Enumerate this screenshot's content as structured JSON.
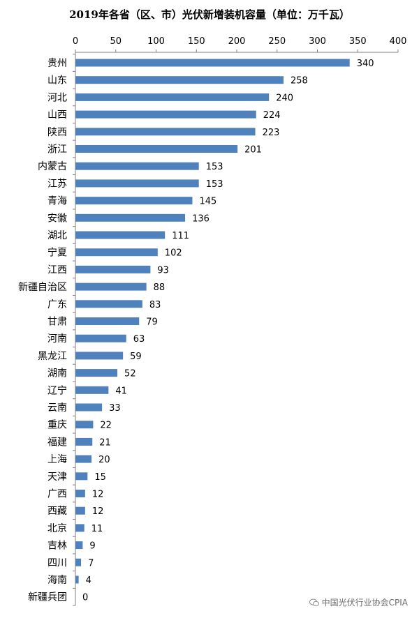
{
  "chart_data": {
    "type": "bar",
    "orientation": "horizontal",
    "title": "2019年各省（区、市）光伏新增装机容量（单位：万千瓦）",
    "categories": [
      "贵州",
      "山东",
      "河北",
      "山西",
      "陕西",
      "浙江",
      "内蒙古",
      "江苏",
      "青海",
      "安徽",
      "湖北",
      "宁夏",
      "江西",
      "新疆自治区",
      "广东",
      "甘肃",
      "河南",
      "黑龙江",
      "湖南",
      "辽宁",
      "云南",
      "重庆",
      "福建",
      "上海",
      "天津",
      "广西",
      "西藏",
      "北京",
      "吉林",
      "四川",
      "海南",
      "新疆兵团"
    ],
    "values": [
      340,
      258,
      240,
      224,
      223,
      201,
      153,
      153,
      145,
      136,
      111,
      102,
      93,
      88,
      83,
      79,
      63,
      59,
      52,
      41,
      33,
      22,
      21,
      20,
      15,
      12,
      12,
      11,
      9,
      7,
      4,
      0
    ],
    "xlim": [
      0,
      400
    ],
    "xticks": [
      0,
      50,
      100,
      150,
      200,
      250,
      300,
      350,
      400
    ],
    "axis_position": "top",
    "grid": false,
    "data_labels": true,
    "bar_color": "#4f81bd"
  },
  "watermark": {
    "text": "中国光伏行业协会CPIA",
    "icon": "wechat-icon"
  }
}
